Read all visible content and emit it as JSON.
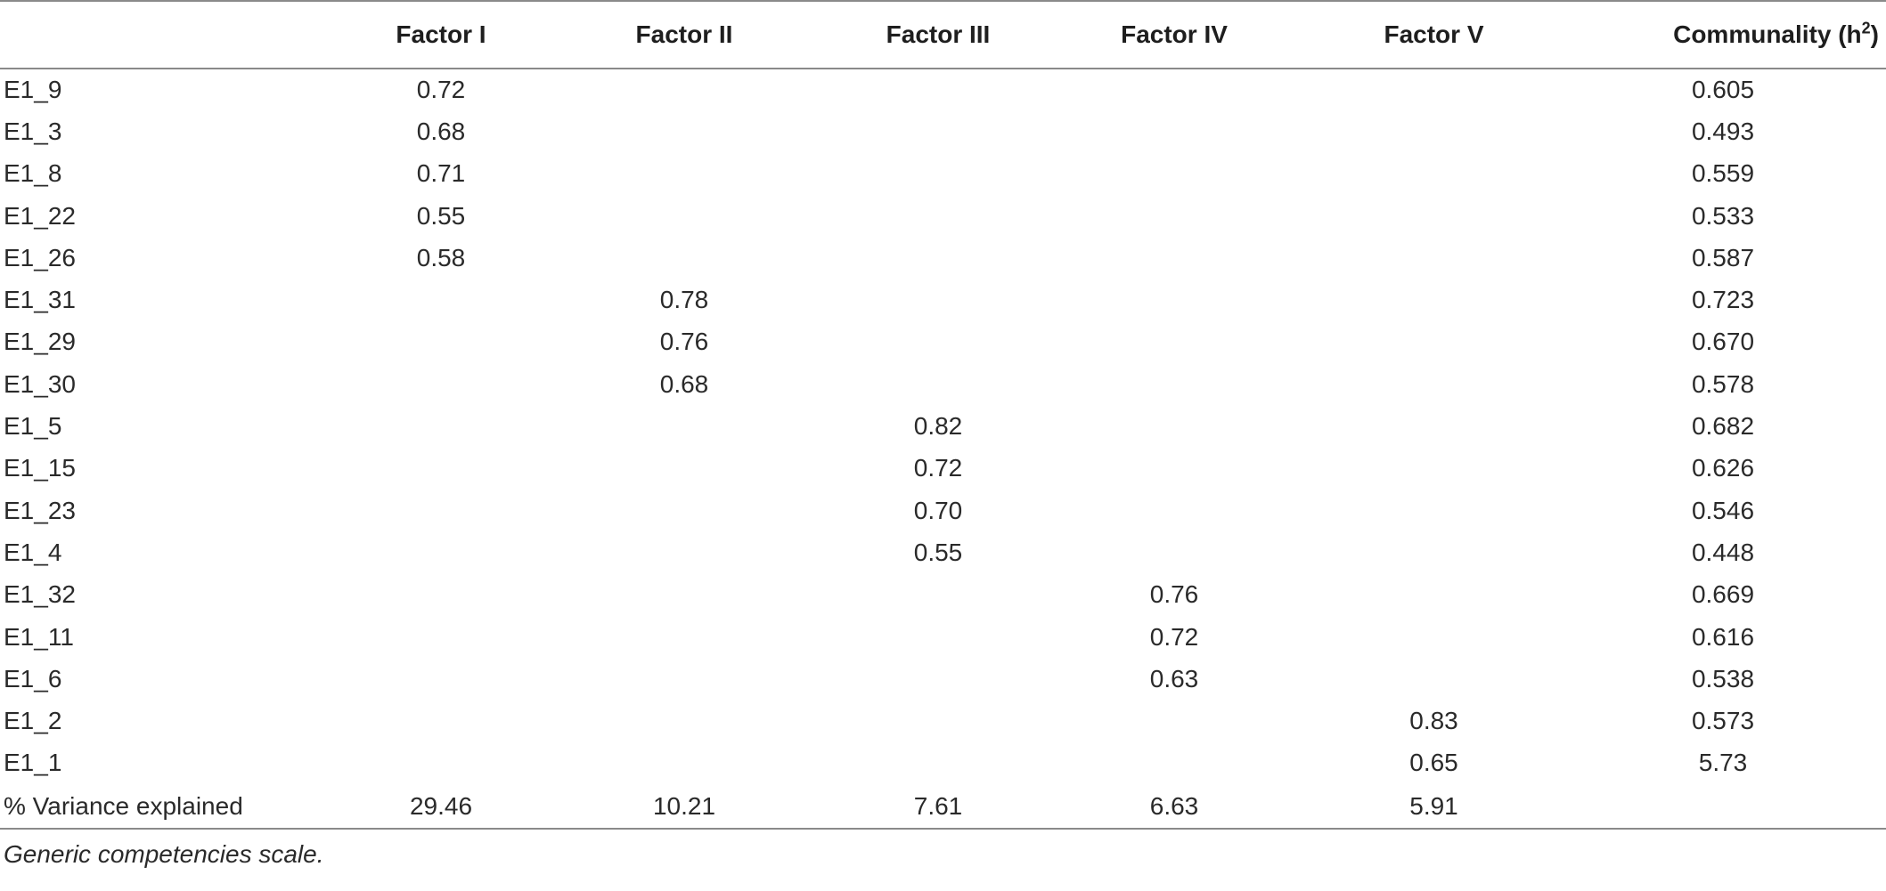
{
  "table": {
    "headers": {
      "rowlabel": "",
      "factor1": "Factor I",
      "factor2": "Factor II",
      "factor3": "Factor III",
      "factor4": "Factor IV",
      "factor5": "Factor V",
      "communality_prefix": "Communality (h",
      "communality_sup": "2",
      "communality_suffix": ")"
    },
    "rows": [
      {
        "label": "E1_9",
        "f1": "0.72",
        "f2": "",
        "f3": "",
        "f4": "",
        "f5": "",
        "h2": "0.605"
      },
      {
        "label": "E1_3",
        "f1": "0.68",
        "f2": "",
        "f3": "",
        "f4": "",
        "f5": "",
        "h2": "0.493"
      },
      {
        "label": "E1_8",
        "f1": "0.71",
        "f2": "",
        "f3": "",
        "f4": "",
        "f5": "",
        "h2": "0.559"
      },
      {
        "label": "E1_22",
        "f1": "0.55",
        "f2": "",
        "f3": "",
        "f4": "",
        "f5": "",
        "h2": "0.533"
      },
      {
        "label": "E1_26",
        "f1": "0.58",
        "f2": "",
        "f3": "",
        "f4": "",
        "f5": "",
        "h2": "0.587"
      },
      {
        "label": "E1_31",
        "f1": "",
        "f2": "0.78",
        "f3": "",
        "f4": "",
        "f5": "",
        "h2": "0.723"
      },
      {
        "label": "E1_29",
        "f1": "",
        "f2": "0.76",
        "f3": "",
        "f4": "",
        "f5": "",
        "h2": "0.670"
      },
      {
        "label": "E1_30",
        "f1": "",
        "f2": "0.68",
        "f3": "",
        "f4": "",
        "f5": "",
        "h2": "0.578"
      },
      {
        "label": "E1_5",
        "f1": "",
        "f2": "",
        "f3": "0.82",
        "f4": "",
        "f5": "",
        "h2": "0.682"
      },
      {
        "label": "E1_15",
        "f1": "",
        "f2": "",
        "f3": "0.72",
        "f4": "",
        "f5": "",
        "h2": "0.626"
      },
      {
        "label": "E1_23",
        "f1": "",
        "f2": "",
        "f3": "0.70",
        "f4": "",
        "f5": "",
        "h2": "0.546"
      },
      {
        "label": "E1_4",
        "f1": "",
        "f2": "",
        "f3": "0.55",
        "f4": "",
        "f5": "",
        "h2": "0.448"
      },
      {
        "label": "E1_32",
        "f1": "",
        "f2": "",
        "f3": "",
        "f4": "0.76",
        "f5": "",
        "h2": "0.669"
      },
      {
        "label": "E1_11",
        "f1": "",
        "f2": "",
        "f3": "",
        "f4": "0.72",
        "f5": "",
        "h2": "0.616"
      },
      {
        "label": "E1_6",
        "f1": "",
        "f2": "",
        "f3": "",
        "f4": "0.63",
        "f5": "",
        "h2": "0.538"
      },
      {
        "label": "E1_2",
        "f1": "",
        "f2": "",
        "f3": "",
        "f4": "",
        "f5": "0.83",
        "h2": "0.573"
      },
      {
        "label": "E1_1",
        "f1": "",
        "f2": "",
        "f3": "",
        "f4": "",
        "f5": "0.65",
        "h2": "5.73"
      },
      {
        "label": "% Variance explained",
        "f1": "29.46",
        "f2": "10.21",
        "f3": "7.61",
        "f4": "6.63",
        "f5": "5.91",
        "h2": ""
      }
    ],
    "footnote": "Generic competencies scale."
  }
}
